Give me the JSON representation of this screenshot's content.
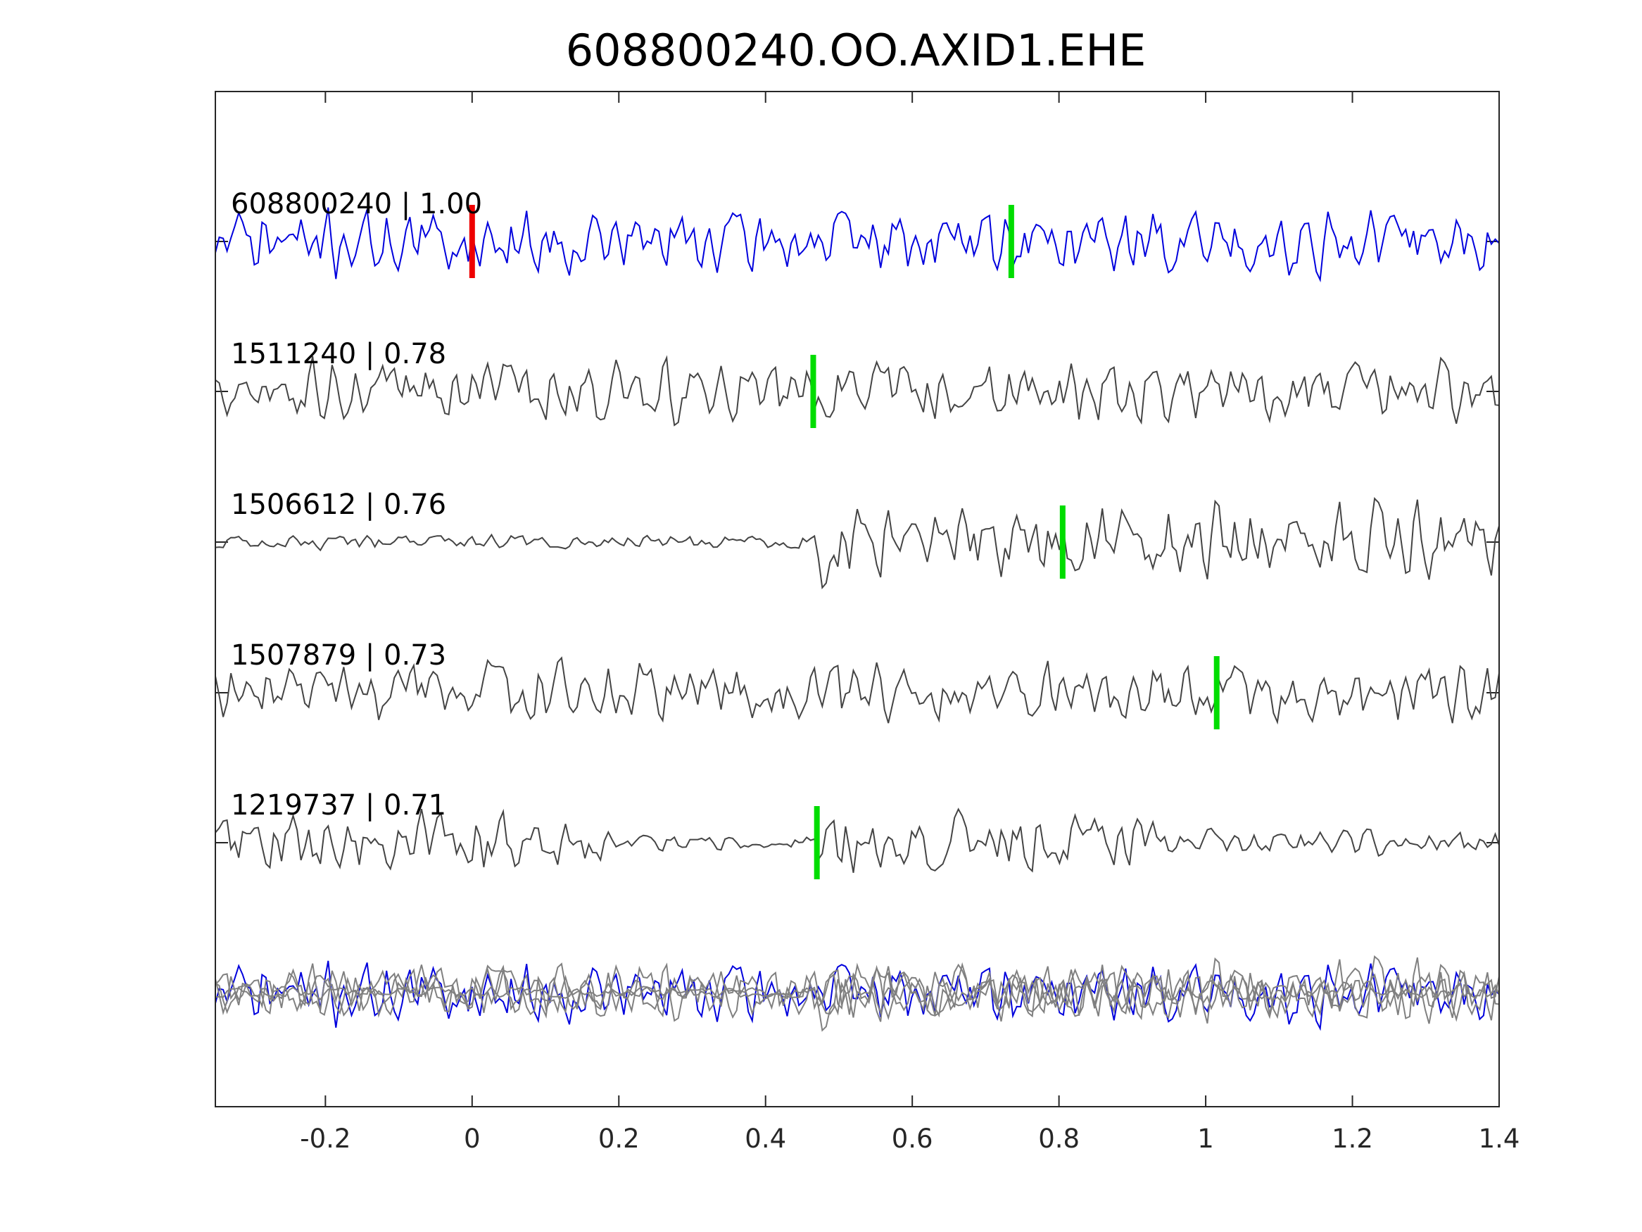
{
  "chart_data": {
    "type": "line",
    "title": "608800240.OO.AXID1.EHE",
    "xlabel": "",
    "ylabel": "",
    "xlim": [
      -0.35,
      1.4
    ],
    "xticks": [
      -0.2,
      0,
      0.2,
      0.4,
      0.6,
      0.8,
      1,
      1.2,
      1.4
    ],
    "xtick_labels": [
      "-0.2",
      "0",
      "0.2",
      "0.4",
      "0.6",
      "0.8",
      "1",
      "1.2",
      "1.4"
    ],
    "grid": false,
    "colors": {
      "template": "#0000dd",
      "neighbor": "#444444",
      "overlay_neighbor": "#808080",
      "pick_main": "#ee0000",
      "pick_aligned": "#00dd00"
    },
    "traces": [
      {
        "label": "608800240 | 1.00",
        "id": "608800240",
        "cc": 1.0,
        "pick_time": 0.0,
        "pick_color": "red",
        "aligned_pick_time": 0.735,
        "template": true,
        "style": "noise"
      },
      {
        "label": "1511240 | 0.78",
        "id": "1511240",
        "cc": 0.78,
        "pick_time": 0.465,
        "template": false,
        "style": "noise"
      },
      {
        "label": "1506612 | 0.76",
        "id": "1506612",
        "cc": 0.76,
        "pick_time": 0.805,
        "template": false,
        "style": "onset",
        "onset": 0.47
      },
      {
        "label": "1507879 | 0.73",
        "id": "1507879",
        "cc": 0.73,
        "pick_time": 1.015,
        "template": false,
        "style": "noise"
      },
      {
        "label": "1219737 | 0.71",
        "id": "1219737",
        "cc": 0.71,
        "pick_time": 0.47,
        "template": false,
        "style": "quiet-middle"
      }
    ],
    "overlay": {
      "label": "",
      "traces_stacked": 5
    }
  }
}
